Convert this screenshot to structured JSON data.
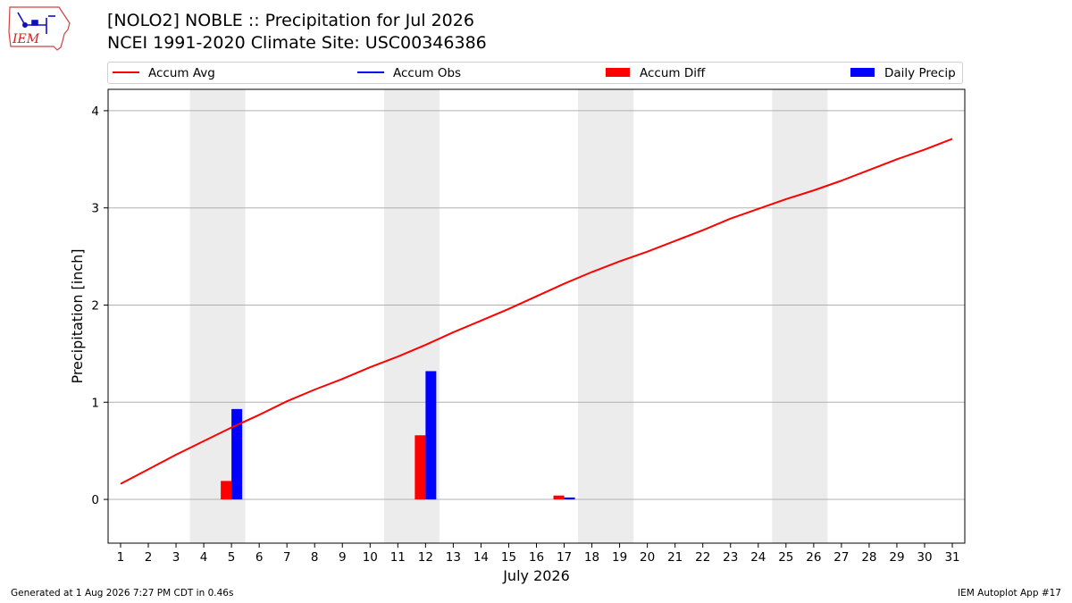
{
  "title": "[NOLO2] NOBLE :: Precipitation for Jul 2026",
  "subtitle": "NCEI 1991-2020 Climate Site: USC00346386",
  "logo": {
    "text": "IEM",
    "icon": "iem-iowa-logo"
  },
  "legend": [
    {
      "label": "Accum Avg",
      "kind": "line",
      "color": "#ff0000"
    },
    {
      "label": "Accum Obs",
      "kind": "line",
      "color": "#0000ff"
    },
    {
      "label": "Accum Diff",
      "kind": "bar",
      "color": "#ff0000"
    },
    {
      "label": "Daily Precip",
      "kind": "bar",
      "color": "#0000ff"
    }
  ],
  "footer": {
    "left": "Generated at 1 Aug 2026 7:27 PM CDT in 0.46s",
    "right": "IEM Autoplot App #17"
  },
  "chart_data": {
    "type": "bar",
    "xlabel": "July 2026",
    "ylabel": "Precipitation [inch]",
    "x": [
      1,
      2,
      3,
      4,
      5,
      6,
      7,
      8,
      9,
      10,
      11,
      12,
      13,
      14,
      15,
      16,
      17,
      18,
      19,
      20,
      21,
      22,
      23,
      24,
      25,
      26,
      27,
      28,
      29,
      30,
      31
    ],
    "ylim": [
      -0.45,
      4.22
    ],
    "yticks": [
      0,
      1,
      2,
      3,
      4
    ],
    "grid": "horizontal",
    "weekend_shading": [
      [
        4,
        5
      ],
      [
        11,
        12
      ],
      [
        18,
        19
      ],
      [
        25,
        26
      ]
    ],
    "series": [
      {
        "name": "Accum Avg",
        "kind": "line",
        "color": "#ff0000",
        "values": [
          0.16,
          0.31,
          0.46,
          0.6,
          0.74,
          0.87,
          1.01,
          1.13,
          1.24,
          1.36,
          1.47,
          1.59,
          1.72,
          1.84,
          1.96,
          2.09,
          2.22,
          2.34,
          2.45,
          2.55,
          2.66,
          2.77,
          2.89,
          2.99,
          3.09,
          3.18,
          3.28,
          3.39,
          3.5,
          3.6,
          3.71
        ]
      },
      {
        "name": "Accum Diff",
        "kind": "bar",
        "color": "#ff0000",
        "points": [
          [
            5,
            0.19
          ],
          [
            12,
            0.66
          ],
          [
            17,
            0.04
          ]
        ]
      },
      {
        "name": "Daily Precip",
        "kind": "bar",
        "color": "#0000ff",
        "points": [
          [
            5,
            0.93
          ],
          [
            12,
            1.32
          ],
          [
            17,
            0.02
          ]
        ]
      }
    ]
  }
}
